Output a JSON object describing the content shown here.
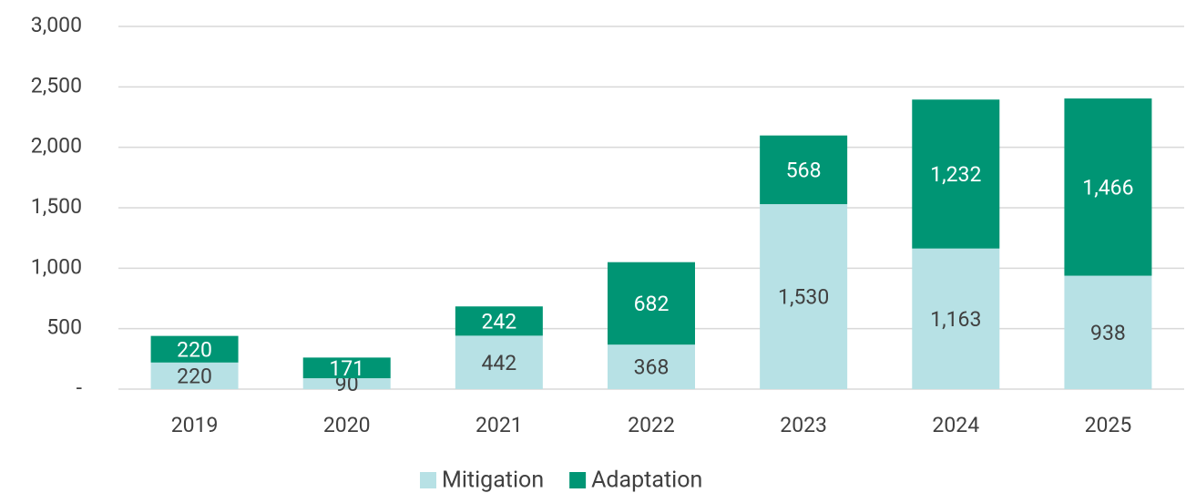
{
  "chart_data": {
    "type": "stacked_bar",
    "categories": [
      "2019",
      "2020",
      "2021",
      "2022",
      "2023",
      "2024",
      "2025"
    ],
    "series": [
      {
        "name": "Mitigation",
        "color": "#b7e1e5",
        "values": [
          220,
          90,
          442,
          368,
          1530,
          1163,
          938
        ],
        "value_labels": [
          "220",
          "90",
          "442",
          "368",
          "1,530",
          "1,163",
          "938"
        ]
      },
      {
        "name": "Adaptation",
        "color": "#009574",
        "values": [
          220,
          171,
          242,
          682,
          568,
          1232,
          1466
        ],
        "value_labels": [
          "220",
          "171",
          "242",
          "682",
          "568",
          "1,232",
          "1,466"
        ]
      }
    ],
    "ylim": [
      0,
      3000
    ],
    "yticks": [
      {
        "value": 0,
        "label": "-"
      },
      500,
      {
        "value": 1000,
        "label": "1,000"
      },
      {
        "value": 1500,
        "label": "1,500"
      },
      {
        "value": 2000,
        "label": "2,000"
      },
      {
        "value": 2500,
        "label": "2,500"
      },
      {
        "value": 3000,
        "label": "3,000"
      }
    ],
    "grid": true,
    "legend": "bottom"
  }
}
